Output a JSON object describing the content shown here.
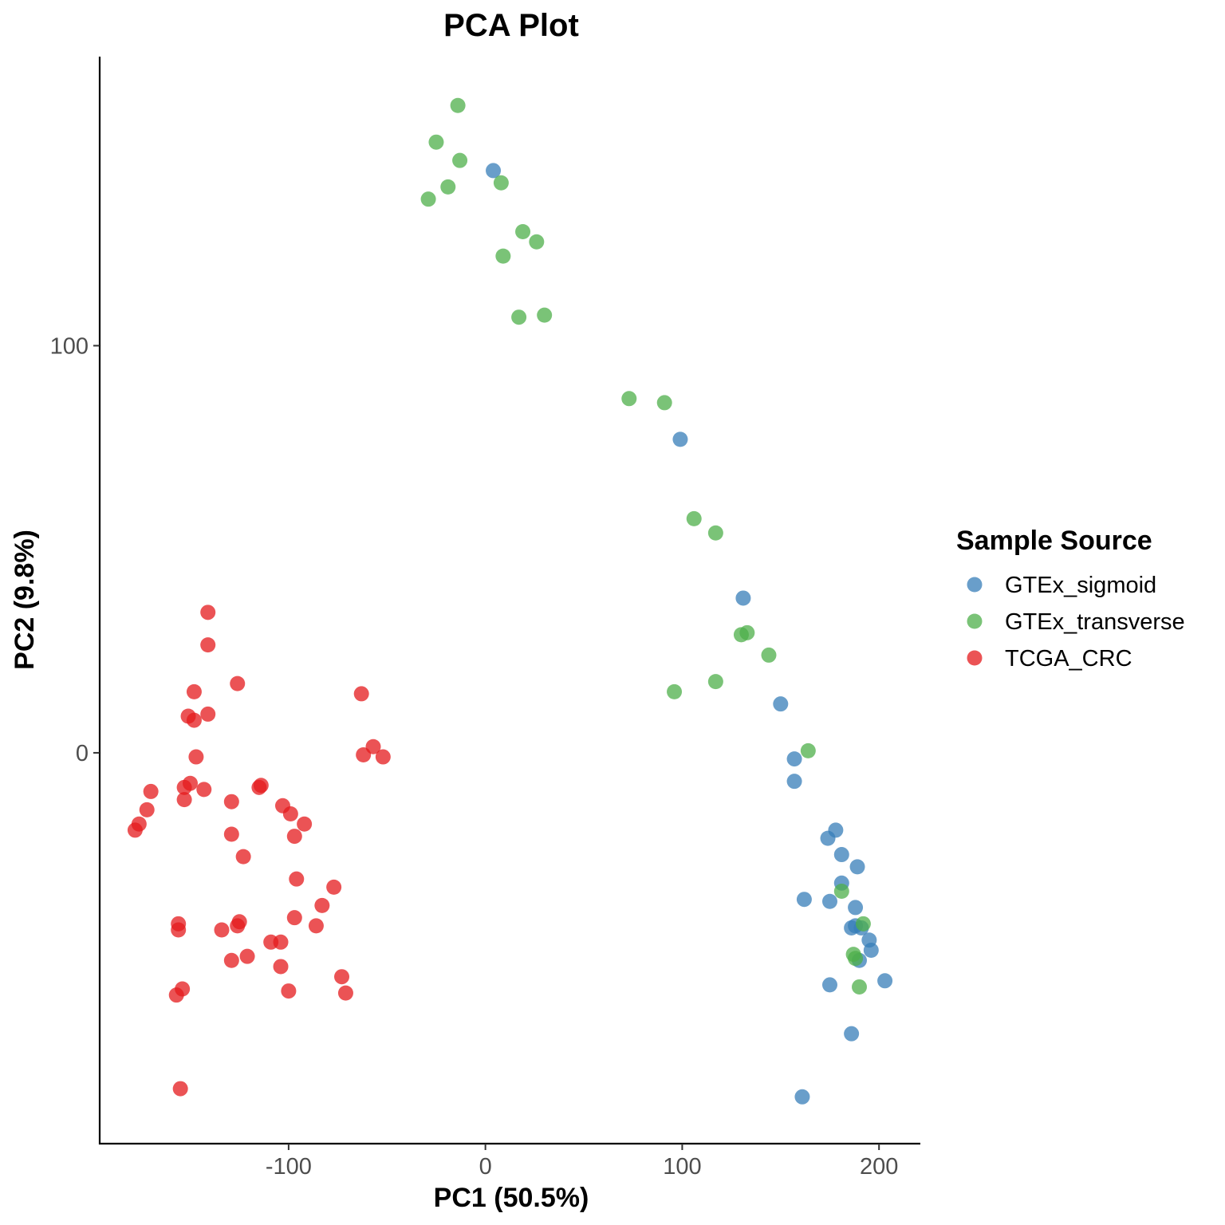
{
  "chart_data": {
    "type": "scatter",
    "title": "PCA Plot",
    "xlabel": "PC1 (50.5%)",
    "ylabel": "PC2 (9.8%)",
    "xlim": [
      -196,
      221
    ],
    "ylim": [
      -96,
      171
    ],
    "xticks": [
      -100,
      0,
      100,
      200
    ],
    "yticks": [
      0,
      100
    ],
    "xtick_labels": [
      "-100",
      "0",
      "100",
      "200"
    ],
    "ytick_labels": [
      "0",
      "100"
    ],
    "grid": false,
    "legend": {
      "title": "Sample Source",
      "position": "right"
    },
    "series": [
      {
        "name": "GTEx_sigmoid",
        "color": "#377EB8",
        "points": [
          [
            4,
            143
          ],
          [
            99,
            77
          ],
          [
            131,
            38
          ],
          [
            150,
            12
          ],
          [
            157,
            -1.5
          ],
          [
            157,
            -7
          ],
          [
            178,
            -19
          ],
          [
            174,
            -21
          ],
          [
            181,
            -25
          ],
          [
            189,
            -28
          ],
          [
            162,
            -36
          ],
          [
            175,
            -36.5
          ],
          [
            181,
            -32
          ],
          [
            188,
            -38
          ],
          [
            186,
            -43
          ],
          [
            188,
            -42.5
          ],
          [
            191,
            -43
          ],
          [
            195,
            -46
          ],
          [
            196,
            -48.5
          ],
          [
            190,
            -51
          ],
          [
            203,
            -56
          ],
          [
            175,
            -57
          ],
          [
            186,
            -69
          ],
          [
            161,
            -84.5
          ]
        ]
      },
      {
        "name": "GTEx_transverse",
        "color": "#4DAF4A",
        "points": [
          [
            -14,
            159
          ],
          [
            -25,
            150
          ],
          [
            -13,
            145.5
          ],
          [
            8,
            140
          ],
          [
            -19,
            139
          ],
          [
            -29,
            136
          ],
          [
            19,
            128
          ],
          [
            26,
            125.5
          ],
          [
            9,
            122
          ],
          [
            17,
            107
          ],
          [
            30,
            107.5
          ],
          [
            73,
            87
          ],
          [
            91,
            86
          ],
          [
            106,
            57.5
          ],
          [
            117,
            54
          ],
          [
            133,
            29.5
          ],
          [
            130,
            29
          ],
          [
            144,
            24
          ],
          [
            117,
            17.5
          ],
          [
            96,
            15
          ],
          [
            164,
            0.5
          ],
          [
            181,
            -34
          ],
          [
            192,
            -42
          ],
          [
            187,
            -49.5
          ],
          [
            188,
            -50.5
          ],
          [
            190,
            -57.5
          ]
        ]
      },
      {
        "name": "TCGA_CRC",
        "color": "#E41A1C",
        "points": [
          [
            -141,
            34.5
          ],
          [
            -141,
            26.5
          ],
          [
            -126,
            17
          ],
          [
            -148,
            15
          ],
          [
            -151,
            9
          ],
          [
            -148,
            8
          ],
          [
            -141,
            9.5
          ],
          [
            -63,
            14.5
          ],
          [
            -147,
            -1
          ],
          [
            -57,
            1.5
          ],
          [
            -62,
            -0.5
          ],
          [
            -52,
            -1
          ],
          [
            -114,
            -8
          ],
          [
            -115,
            -8.5
          ],
          [
            -150,
            -7.5
          ],
          [
            -153,
            -8.5
          ],
          [
            -143,
            -9
          ],
          [
            -170,
            -9.5
          ],
          [
            -153,
            -11.5
          ],
          [
            -129,
            -12
          ],
          [
            -103,
            -13
          ],
          [
            -172,
            -14
          ],
          [
            -99,
            -15
          ],
          [
            -176,
            -17.5
          ],
          [
            -92,
            -17.5
          ],
          [
            -178,
            -19
          ],
          [
            -129,
            -20
          ],
          [
            -97,
            -20.5
          ],
          [
            -123,
            -25.5
          ],
          [
            -96,
            -31
          ],
          [
            -77,
            -33
          ],
          [
            -83,
            -37.5
          ],
          [
            -97,
            -40.5
          ],
          [
            -86,
            -42.5
          ],
          [
            -156,
            -42
          ],
          [
            -125,
            -41.5
          ],
          [
            -126,
            -42.5
          ],
          [
            -156,
            -43.5
          ],
          [
            -134,
            -43.5
          ],
          [
            -109,
            -46.5
          ],
          [
            -104,
            -46.5
          ],
          [
            -121,
            -50
          ],
          [
            -129,
            -51
          ],
          [
            -104,
            -52.5
          ],
          [
            -73,
            -55
          ],
          [
            -154,
            -58
          ],
          [
            -100,
            -58.5
          ],
          [
            -71,
            -59
          ],
          [
            -157,
            -59.5
          ],
          [
            -155,
            -82.5
          ]
        ]
      }
    ]
  }
}
